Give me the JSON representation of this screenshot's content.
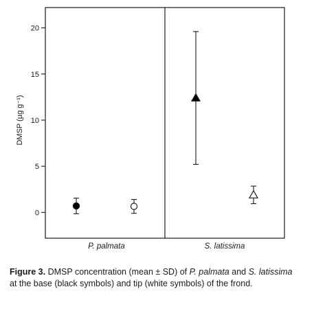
{
  "chart_data": {
    "type": "scatter",
    "ylabel": "DMSP (µg g⁻¹)",
    "ylim": [
      -2.8,
      22.2
    ],
    "yticks": [
      0,
      5,
      10,
      15,
      20
    ],
    "categories": [
      "P. palmata",
      "S. latissima"
    ],
    "grid": false,
    "panel_divider": "between categories",
    "points": [
      {
        "category": "P. palmata",
        "position": "base",
        "marker": "circle",
        "fill": "#000000",
        "mean": 0.7,
        "sd": 0.85
      },
      {
        "category": "P. palmata",
        "position": "tip",
        "marker": "circle",
        "fill": "#ffffff",
        "mean": 0.65,
        "sd": 0.75
      },
      {
        "category": "S. latissima",
        "position": "base",
        "marker": "triangle",
        "fill": "#000000",
        "mean": 12.4,
        "sd": 7.2
      },
      {
        "category": "S. latissima",
        "position": "tip",
        "marker": "triangle",
        "fill": "#ffffff",
        "mean": 1.9,
        "sd": 0.95
      }
    ]
  },
  "caption": {
    "label": "Figure 3.",
    "text_1": "DMSP concentration (mean ± SD) of ",
    "species_1": "P. palmata",
    "text_2": " and ",
    "species_2": "S. latissima",
    "text_3": " at the base (black symbols) and tip (white symbols) of the frond."
  }
}
